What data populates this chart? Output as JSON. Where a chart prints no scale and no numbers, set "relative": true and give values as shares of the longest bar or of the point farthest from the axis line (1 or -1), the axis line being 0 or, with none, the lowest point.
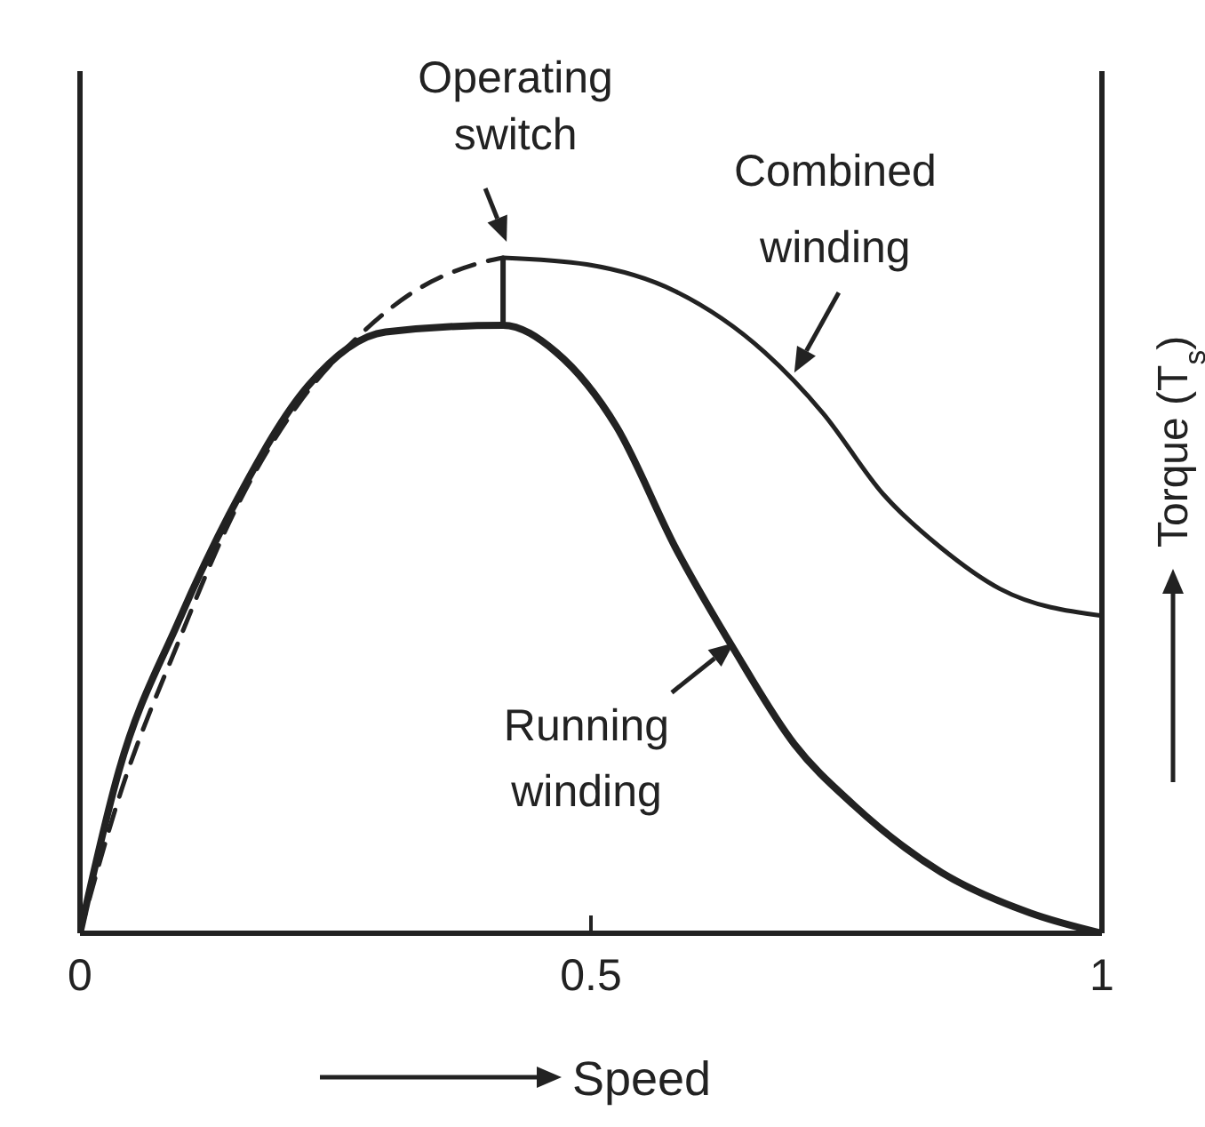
{
  "chart_data": {
    "type": "line",
    "relative": true,
    "xlabel": "Speed",
    "ylabel": "Torque (T$_{s}$)",
    "xlim": [
      0,
      1
    ],
    "xticks": [
      0,
      0.5,
      1
    ],
    "marker": "none",
    "series": [
      {
        "color": "#222222",
        "x": [
          0,
          0.038,
          0.096,
          0.153,
          0.223,
          0.299,
          0.414,
          0.466,
          0.525,
          0.583,
          0.64,
          0.699,
          0.757,
          0.843,
          0.93,
          1
        ],
        "values": [
          0,
          0.24,
          0.46,
          0.64,
          0.81,
          0.89,
          0.9,
          0.86,
          0.75,
          0.57,
          0.42,
          0.28,
          0.19,
          0.09,
          0.03,
          0
        ]
      },
      {
        "color": "#222222",
        "line_style": "dashed",
        "x": [
          0,
          0.038,
          0.096,
          0.153,
          0.212,
          0.27,
          0.327,
          0.386,
          0.414
        ],
        "values": [
          0,
          0.2,
          0.43,
          0.63,
          0.78,
          0.88,
          0.95,
          0.99,
          1
        ]
      },
      {
        "color": "#222222",
        "x": [
          0.414,
          0.496,
          0.583,
          0.67,
          0.727,
          0.786,
          0.843,
          0.9,
          1
        ],
        "values": [
          1,
          0.99,
          0.95,
          0.86,
          0.77,
          0.65,
          0.57,
          0.51,
          0.47
        ]
      }
    ],
    "annotations": [
      {
        "text": "Operating switch",
        "x": 0.414,
        "y": 1
      },
      {
        "text": "Combined winding",
        "x": 0.699,
        "y": 0.83
      },
      {
        "text": "Running winding",
        "x": 0.64,
        "y": 0.43
      }
    ]
  }
}
